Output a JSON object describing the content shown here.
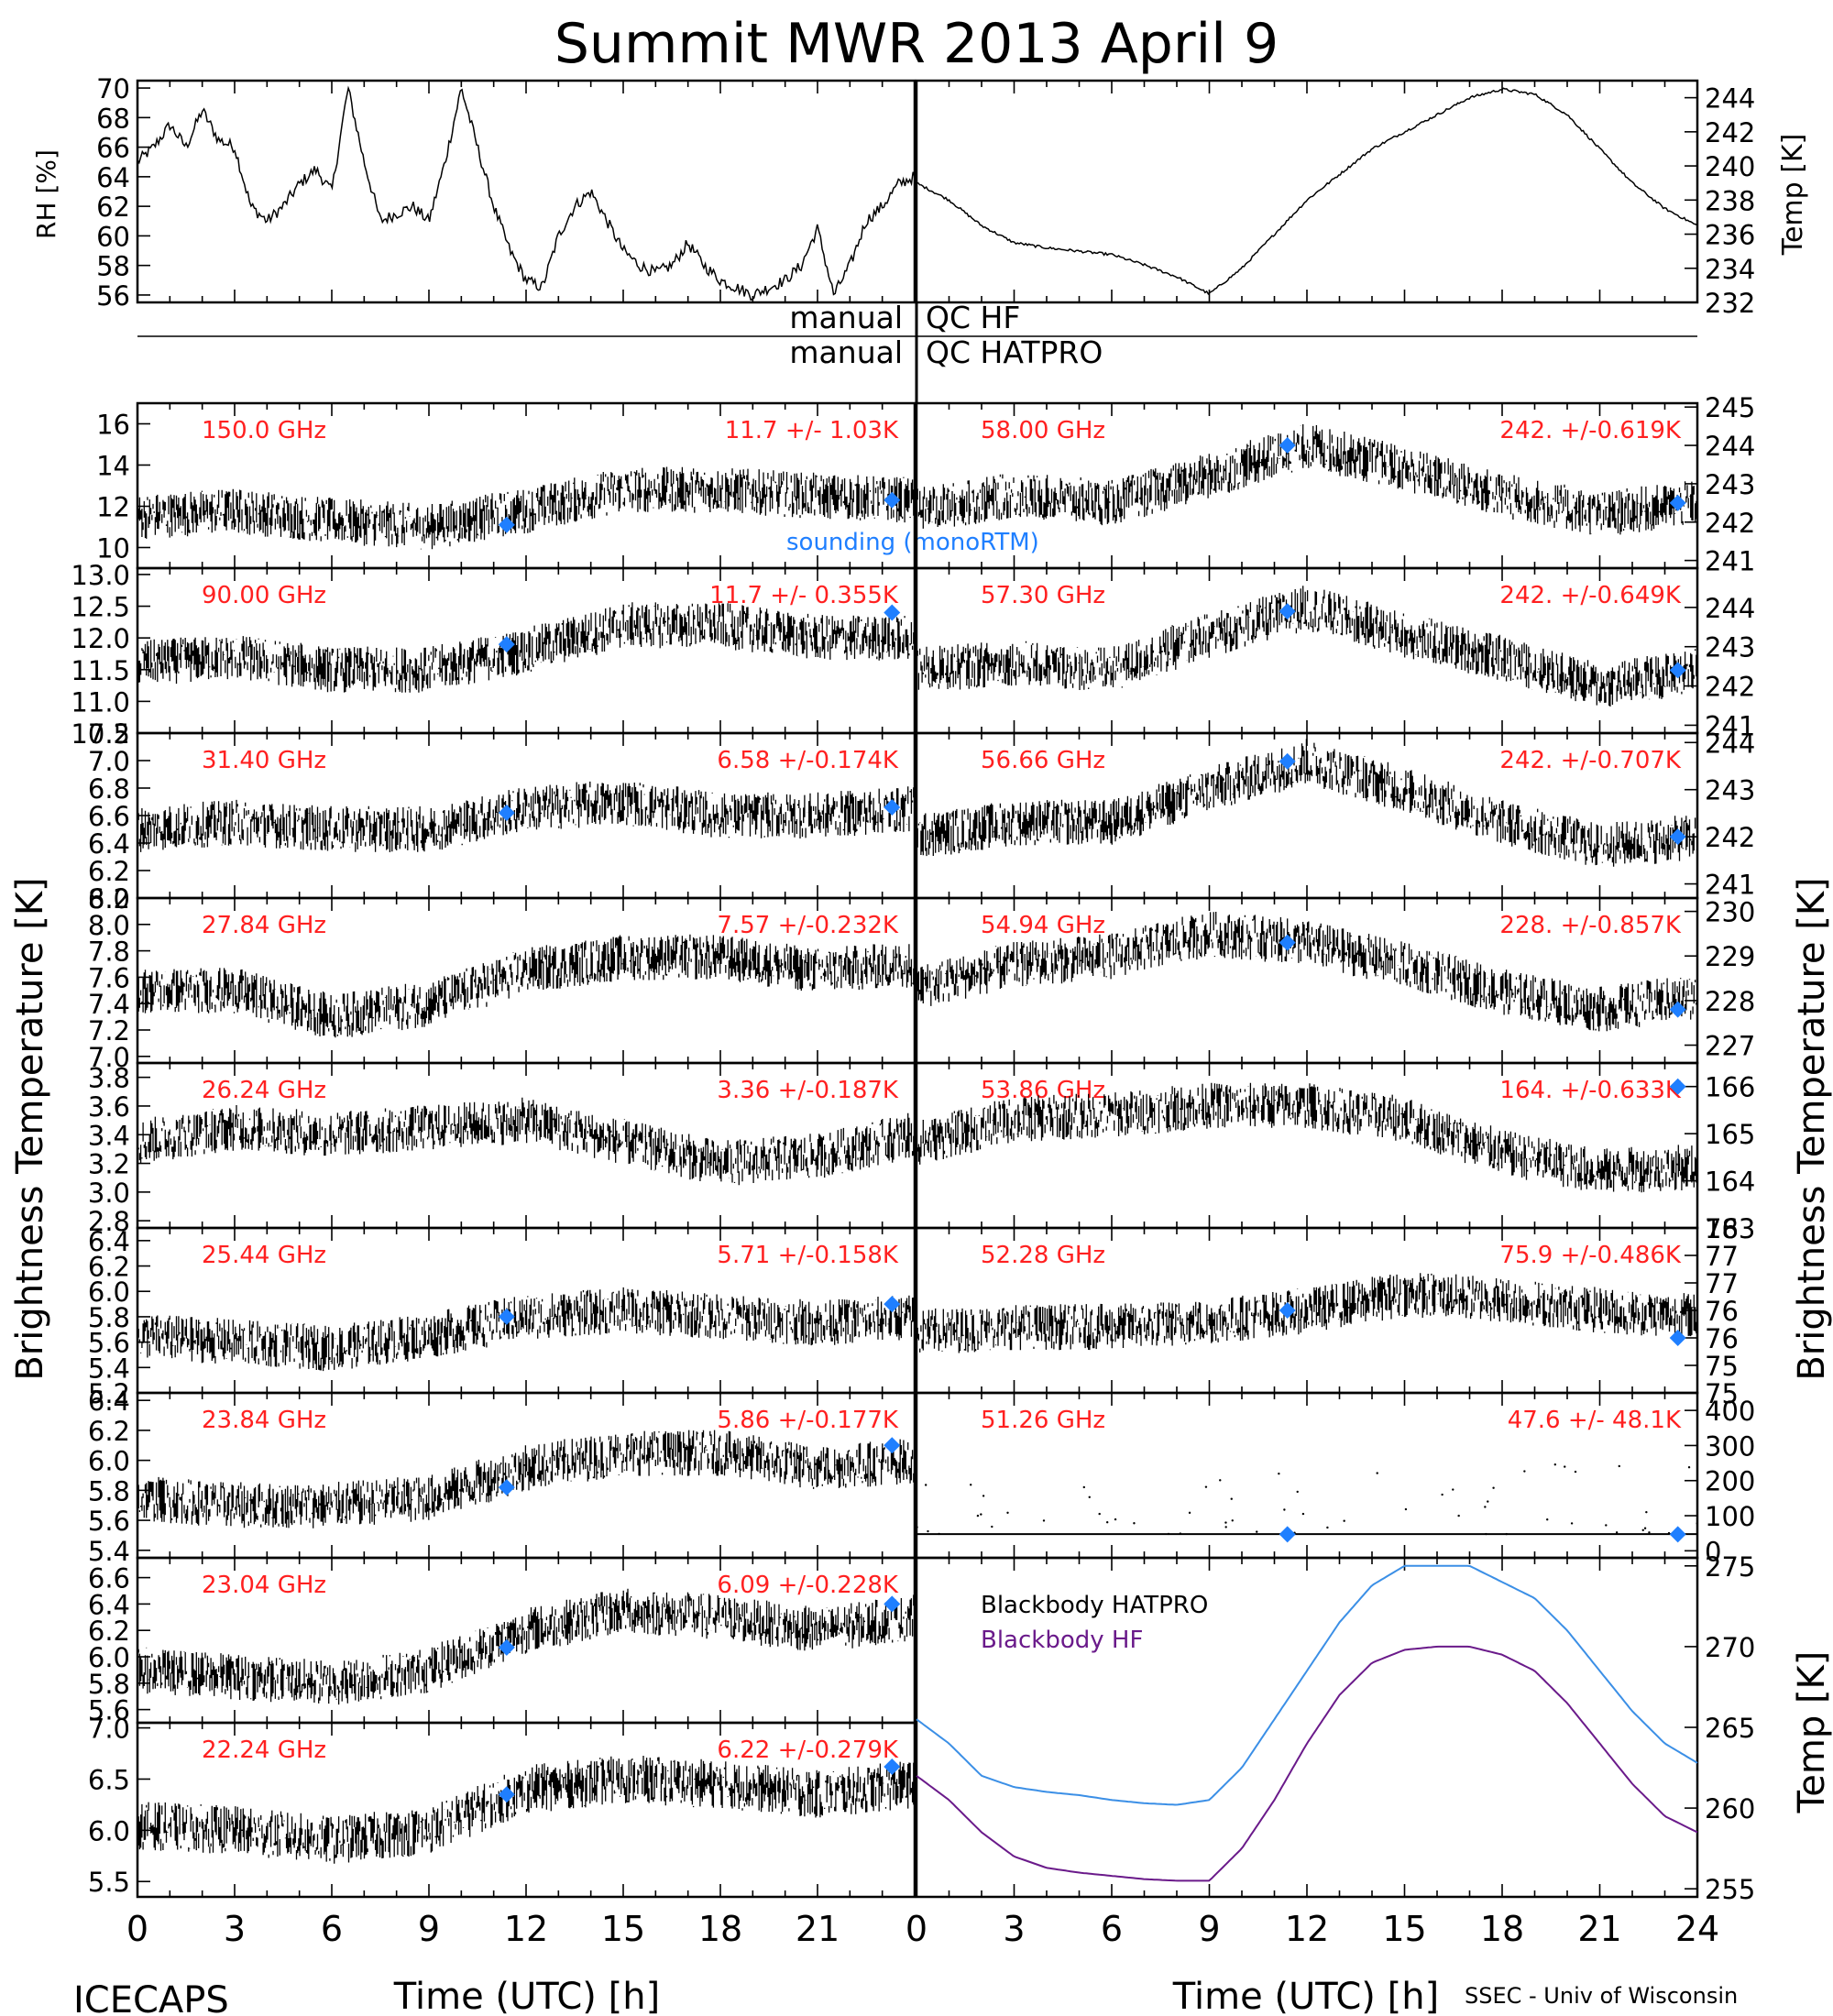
{
  "title": "Summit MWR 2013 April  9",
  "footer": {
    "left": "ICECAPS",
    "right": "SSEC - Univ of Wisconsin"
  },
  "qc": {
    "line1_left": "manual",
    "line1_right": "QC HF",
    "line2_left": "manual",
    "line2_right": "QC HATPRO"
  },
  "axes": {
    "x_label": "Time (UTC) [h]",
    "x_ticks": [
      0,
      3,
      6,
      9,
      12,
      15,
      18,
      21
    ],
    "x_ticks_right": [
      0,
      3,
      6,
      9,
      12,
      15,
      18,
      21,
      24
    ],
    "left_ylabel": "Brightness Temperature [K]",
    "right_ylabel": "Brightness Temperature [K]",
    "rh_ylabel": "RH [%]",
    "temp_ylabel": "Temp [K]",
    "bb_ylabel": "Temp [K]"
  },
  "legend": {
    "sounding": "sounding (monoRTM)",
    "bb_hatpro": "Blackbody HATPRO",
    "bb_hf": "Blackbody HF"
  },
  "colors": {
    "label_red": "#ff2020",
    "sounding_blue": "#1f7fff",
    "bb_hatpro": "#3b8fe6",
    "bb_hf": "#6a1a8a"
  },
  "chart_data": [
    {
      "type": "line",
      "panel": "rh",
      "ylabel": "RH [%]",
      "ylim": [
        55.5,
        70.5
      ],
      "yticks": [
        56,
        58,
        60,
        62,
        64,
        66,
        68,
        70
      ],
      "xlim": [
        0,
        24
      ],
      "x": [
        0,
        0.5,
        1,
        1.5,
        2,
        2.5,
        3,
        3.5,
        4,
        4.5,
        5,
        5.5,
        6,
        6.5,
        7,
        7.5,
        8,
        8.5,
        9,
        9.5,
        10,
        10.5,
        11,
        11.5,
        12,
        12.5,
        13,
        13.5,
        14,
        14.5,
        15,
        15.5,
        16,
        16.5,
        17,
        17.5,
        18,
        18.5,
        19,
        19.5,
        20,
        20.5,
        21,
        21.5,
        22,
        22.5,
        23,
        23.5,
        24
      ],
      "values": [
        65,
        66,
        67.5,
        66,
        68.5,
        66.5,
        66,
        62,
        61,
        62,
        63.5,
        64.5,
        63,
        70,
        65,
        61,
        61.5,
        62,
        61,
        65,
        70,
        66,
        62,
        59,
        57,
        56.5,
        60,
        62,
        63,
        61,
        59,
        58,
        57.5,
        58,
        59.5,
        58,
        57,
        56.5,
        56,
        56.5,
        57,
        58,
        60.5,
        56,
        58,
        61,
        62,
        63.5,
        64
      ]
    },
    {
      "type": "line",
      "panel": "temp",
      "ylabel": "Temp [K]",
      "ylim": [
        232,
        245
      ],
      "yticks": [
        232,
        234,
        236,
        238,
        240,
        242,
        244
      ],
      "xlim": [
        0,
        24
      ],
      "x": [
        0,
        1,
        2,
        3,
        4,
        5,
        6,
        7,
        8,
        9,
        10,
        11,
        12,
        13,
        14,
        15,
        16,
        17,
        18,
        19,
        20,
        21,
        22,
        23,
        24
      ],
      "values": [
        239,
        238,
        236.5,
        235.5,
        235.2,
        235,
        234.8,
        234.2,
        233.5,
        232.5,
        234,
        236,
        238,
        239.5,
        241,
        242,
        243,
        244,
        244.5,
        244.2,
        243,
        241,
        239,
        237.5,
        236.5
      ]
    },
    {
      "type": "scatter",
      "channel": "150.0 GHz",
      "stat": "11.7 +/-  1.03K",
      "ylim": [
        9,
        17
      ],
      "yticks": [
        10,
        12,
        14,
        16
      ],
      "x": [
        0,
        3,
        6,
        9,
        12,
        15,
        18,
        21,
        24
      ],
      "values": [
        11.5,
        11.8,
        11.3,
        11.0,
        11.8,
        12.8,
        12.8,
        12.5,
        12.3
      ],
      "sounding": {
        "x": [
          11.4,
          23.3
        ],
        "values": [
          11.1,
          12.3
        ]
      }
    },
    {
      "type": "scatter",
      "channel": "90.00 GHz",
      "stat": "11.7 +/- 0.355K",
      "ylim": [
        10.5,
        13.1
      ],
      "yticks": [
        10.5,
        11.0,
        11.5,
        12.0,
        12.5,
        13.0
      ],
      "x": [
        0,
        3,
        6,
        9,
        12,
        15,
        18,
        21,
        24
      ],
      "values": [
        11.6,
        11.7,
        11.5,
        11.5,
        11.8,
        12.2,
        12.2,
        12.0,
        12.0
      ],
      "sounding": {
        "x": [
          11.4,
          23.3
        ],
        "values": [
          11.9,
          12.4
        ]
      }
    },
    {
      "type": "scatter",
      "channel": "31.40 GHz",
      "stat": "6.58 +/-0.174K",
      "ylim": [
        6.0,
        7.2
      ],
      "yticks": [
        6.0,
        6.2,
        6.4,
        6.6,
        6.8,
        7.0,
        7.2
      ],
      "x": [
        0,
        3,
        6,
        9,
        12,
        15,
        18,
        21,
        24
      ],
      "values": [
        6.5,
        6.55,
        6.5,
        6.5,
        6.65,
        6.7,
        6.6,
        6.6,
        6.65
      ],
      "sounding": {
        "x": [
          11.4,
          23.3
        ],
        "values": [
          6.62,
          6.66
        ]
      }
    },
    {
      "type": "scatter",
      "channel": "27.84 GHz",
      "stat": "7.57 +/-0.232K",
      "ylim": [
        6.95,
        8.2
      ],
      "yticks": [
        7.0,
        7.2,
        7.4,
        7.6,
        7.8,
        8.0,
        8.2
      ],
      "x": [
        0,
        3,
        6,
        9,
        12,
        15,
        18,
        21,
        24
      ],
      "values": [
        7.5,
        7.5,
        7.3,
        7.4,
        7.65,
        7.75,
        7.75,
        7.65,
        7.7
      ],
      "sounding": null
    },
    {
      "type": "scatter",
      "channel": "26.24 GHz",
      "stat": "3.36 +/-0.187K",
      "ylim": [
        2.75,
        3.9
      ],
      "yticks": [
        2.8,
        3.0,
        3.2,
        3.4,
        3.6,
        3.8
      ],
      "x": [
        0,
        3,
        6,
        9,
        12,
        15,
        18,
        21,
        24
      ],
      "values": [
        3.35,
        3.45,
        3.4,
        3.45,
        3.5,
        3.35,
        3.2,
        3.25,
        3.4
      ],
      "sounding": null
    },
    {
      "type": "scatter",
      "channel": "25.44 GHz",
      "stat": "5.71 +/-0.158K",
      "ylim": [
        5.2,
        6.5
      ],
      "yticks": [
        5.2,
        5.4,
        5.6,
        5.8,
        6.0,
        6.2,
        6.4
      ],
      "x": [
        0,
        3,
        6,
        9,
        12,
        15,
        18,
        21,
        24
      ],
      "values": [
        5.65,
        5.6,
        5.55,
        5.65,
        5.8,
        5.85,
        5.8,
        5.75,
        5.8
      ],
      "sounding": {
        "x": [
          11.4,
          23.3
        ],
        "values": [
          5.8,
          5.9
        ]
      }
    },
    {
      "type": "scatter",
      "channel": "23.84 GHz",
      "stat": "5.86 +/-0.177K",
      "ylim": [
        5.35,
        6.45
      ],
      "yticks": [
        5.4,
        5.6,
        5.8,
        6.0,
        6.2,
        6.4
      ],
      "x": [
        0,
        3,
        6,
        9,
        12,
        15,
        18,
        21,
        24
      ],
      "values": [
        5.75,
        5.7,
        5.7,
        5.75,
        5.95,
        6.05,
        6.05,
        5.95,
        6.0
      ],
      "sounding": {
        "x": [
          11.4,
          23.3
        ],
        "values": [
          5.82,
          6.1
        ]
      }
    },
    {
      "type": "scatter",
      "channel": "23.04 GHz",
      "stat": "6.09 +/-0.228K",
      "ylim": [
        5.5,
        6.75
      ],
      "yticks": [
        5.6,
        5.8,
        6.0,
        6.2,
        6.4,
        6.6
      ],
      "x": [
        0,
        3,
        6,
        9,
        12,
        15,
        18,
        21,
        24
      ],
      "values": [
        5.9,
        5.85,
        5.8,
        5.9,
        6.2,
        6.35,
        6.3,
        6.2,
        6.3
      ],
      "sounding": {
        "x": [
          11.4,
          23.3
        ],
        "values": [
          6.07,
          6.4
        ]
      }
    },
    {
      "type": "scatter",
      "channel": "22.24 GHz",
      "stat": "6.22 +/-0.279K",
      "ylim": [
        5.35,
        7.05
      ],
      "yticks": [
        5.5,
        6.0,
        6.5,
        7.0
      ],
      "x": [
        0,
        3,
        6,
        9,
        12,
        15,
        18,
        21,
        24
      ],
      "values": [
        6.05,
        6.0,
        5.9,
        6.0,
        6.4,
        6.5,
        6.45,
        6.35,
        6.45
      ],
      "sounding": {
        "x": [
          11.4,
          23.3
        ],
        "values": [
          6.35,
          6.62
        ]
      }
    },
    {
      "type": "scatter",
      "channel": "58.00 GHz",
      "stat": "242. +/-0.619K",
      "ylim": [
        240.8,
        245.1
      ],
      "yticks": [
        241,
        242,
        243,
        244,
        245
      ],
      "x": [
        0,
        3,
        6,
        9,
        12,
        15,
        18,
        21,
        24
      ],
      "values": [
        242.3,
        242.7,
        242.5,
        243.2,
        244.0,
        243.4,
        242.7,
        242.2,
        242.5
      ],
      "sounding": {
        "x": [
          11.4,
          23.4
        ],
        "values": [
          244.0,
          242.5
        ]
      }
    },
    {
      "type": "scatter",
      "channel": "57.30 GHz",
      "stat": "242. +/-0.649K",
      "ylim": [
        240.8,
        245.0
      ],
      "yticks": [
        241,
        242,
        243,
        244
      ],
      "x": [
        0,
        3,
        6,
        9,
        12,
        15,
        18,
        21,
        24
      ],
      "values": [
        242.4,
        242.6,
        242.4,
        243.3,
        244.0,
        243.3,
        242.7,
        242.0,
        242.4
      ],
      "sounding": {
        "x": [
          11.4,
          23.4
        ],
        "values": [
          243.9,
          242.4
        ]
      }
    },
    {
      "type": "scatter",
      "channel": "56.66 GHz",
      "stat": "242. +/-0.707K",
      "ylim": [
        240.7,
        244.2
      ],
      "yticks": [
        241,
        242,
        243,
        244
      ],
      "x": [
        0,
        3,
        6,
        9,
        12,
        15,
        18,
        21,
        24
      ],
      "values": [
        242.0,
        242.3,
        242.3,
        243.0,
        243.6,
        243.0,
        242.3,
        241.8,
        242.0
      ],
      "sounding": {
        "x": [
          11.4,
          23.4
        ],
        "values": [
          243.6,
          242.0
        ]
      }
    },
    {
      "type": "scatter",
      "channel": "54.94 GHz",
      "stat": "228. +/-0.857K",
      "ylim": [
        226.6,
        230.3
      ],
      "yticks": [
        227,
        228,
        229,
        230
      ],
      "x": [
        0,
        3,
        6,
        9,
        12,
        15,
        18,
        21,
        24
      ],
      "values": [
        228.3,
        228.8,
        229.0,
        229.5,
        229.3,
        228.8,
        228.2,
        227.8,
        228.1
      ],
      "sounding": {
        "x": [
          11.4,
          23.4
        ],
        "values": [
          229.3,
          227.8
        ]
      }
    },
    {
      "type": "scatter",
      "channel": "53.86 GHz",
      "stat": "164. +/-0.633K",
      "ylim": [
        163,
        166.5
      ],
      "yticks": [
        163,
        164,
        165,
        166
      ],
      "x": [
        0,
        3,
        6,
        9,
        12,
        15,
        18,
        21,
        24
      ],
      "values": [
        164.8,
        165.3,
        165.4,
        165.6,
        165.6,
        165.3,
        164.6,
        164.2,
        164.3
      ],
      "sounding": {
        "x": [
          23.4
        ],
        "values": [
          166.0
        ]
      }
    },
    {
      "type": "scatter",
      "channel": "52.28 GHz",
      "stat": "75.9 +/-0.486K",
      "ylim": [
        74.5,
        77.5
      ],
      "yticks": [
        74.5,
        75.0,
        75.5,
        76.0,
        76.5,
        77.0,
        77.5
      ],
      "x": [
        0,
        3,
        6,
        9,
        12,
        15,
        18,
        21,
        24
      ],
      "values": [
        75.6,
        75.7,
        75.7,
        75.8,
        76.0,
        76.3,
        76.2,
        76.0,
        75.9
      ],
      "sounding": {
        "x": [
          11.4,
          23.4
        ],
        "values": [
          76.0,
          75.5
        ]
      }
    },
    {
      "type": "scatter",
      "channel": "51.26 GHz",
      "stat": "47.6 +/- 48.1K",
      "ylim": [
        -20,
        450
      ],
      "yticks": [
        0,
        100,
        200,
        300,
        400
      ],
      "x": [
        0,
        24
      ],
      "values": [
        47.6,
        47.6
      ],
      "sounding": {
        "x": [
          11.4,
          23.4
        ],
        "values": [
          47,
          47
        ]
      }
    },
    {
      "type": "line",
      "panel": "blackbody",
      "ylabel": "Temp [K]",
      "ylim": [
        254.5,
        275.5
      ],
      "yticks": [
        255,
        260,
        265,
        270,
        275
      ],
      "xlim": [
        0,
        24
      ],
      "x": [
        0,
        1,
        2,
        3,
        4,
        5,
        6,
        7,
        8,
        9,
        10,
        11,
        12,
        13,
        14,
        15,
        16,
        17,
        18,
        19,
        20,
        21,
        22,
        23,
        24
      ],
      "series": [
        {
          "name": "Blackbody HATPRO",
          "values": [
            265.5,
            264,
            262,
            261.3,
            261,
            260.8,
            260.5,
            260.3,
            260.2,
            260.5,
            262.5,
            265.5,
            268.5,
            271.5,
            273.8,
            275,
            275,
            275,
            274,
            273,
            271,
            268.5,
            266,
            264,
            262.8
          ]
        },
        {
          "name": "Blackbody HF",
          "values": [
            262,
            260.5,
            258.5,
            257,
            256.3,
            256,
            255.8,
            255.6,
            255.5,
            255.5,
            257.5,
            260.5,
            264,
            267,
            269,
            269.8,
            270,
            270,
            269.5,
            268.5,
            266.5,
            264,
            261.5,
            259.5,
            258.5
          ]
        }
      ]
    }
  ]
}
